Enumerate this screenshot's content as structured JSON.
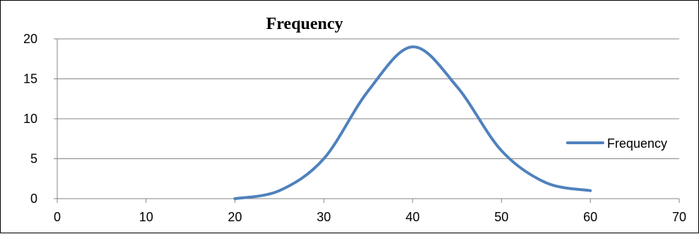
{
  "chart_data": {
    "type": "scatter",
    "title": "Frequency",
    "xlabel": "",
    "ylabel": "",
    "xlim": [
      0,
      70
    ],
    "ylim": [
      0,
      20
    ],
    "x_ticks": [
      0,
      10,
      20,
      30,
      40,
      50,
      60,
      70
    ],
    "y_ticks": [
      0,
      5,
      10,
      15,
      20
    ],
    "grid": "horizontal",
    "legend": "right",
    "series": [
      {
        "name": "Frequency",
        "color": "#4f81bd",
        "smooth": true,
        "x": [
          20,
          25,
          30,
          35,
          40,
          45,
          50,
          55,
          60
        ],
        "y": [
          0,
          1,
          5,
          13.5,
          19,
          14,
          6,
          2,
          1
        ]
      }
    ]
  }
}
